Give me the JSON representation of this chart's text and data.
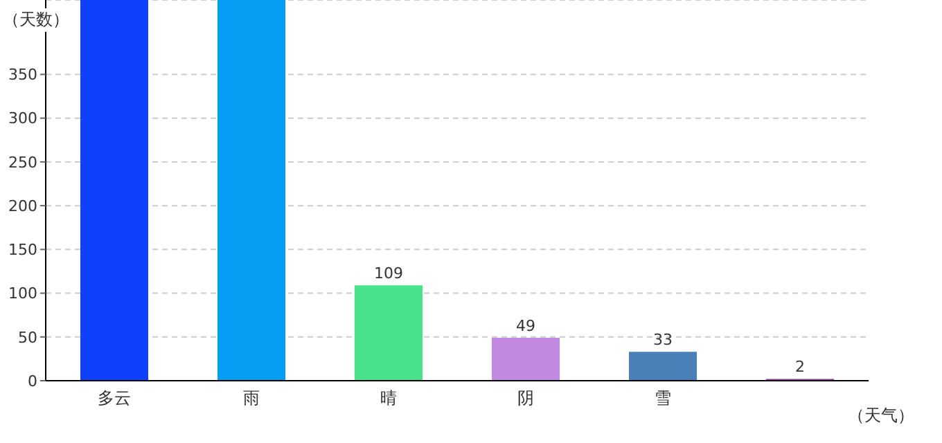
{
  "chart_data": {
    "type": "bar",
    "ylabel": "（天数）",
    "xlabel": "（天气）",
    "categories": [
      "多云",
      "雨",
      "晴",
      "阴",
      "雪",
      null
    ],
    "values": [
      435,
      435,
      109,
      49,
      33,
      2
    ],
    "colors": [
      "#0d41fb",
      "#069ef5",
      "#46e38a",
      "#c189e0",
      "#4a80b8",
      "#a32aa8"
    ],
    "value_labels": [
      null,
      null,
      "109",
      "49",
      "33",
      "2"
    ],
    "ylim": [
      0,
      435
    ],
    "yticks": [
      0,
      50,
      100,
      150,
      200,
      250,
      300,
      350
    ],
    "grid": "y"
  }
}
